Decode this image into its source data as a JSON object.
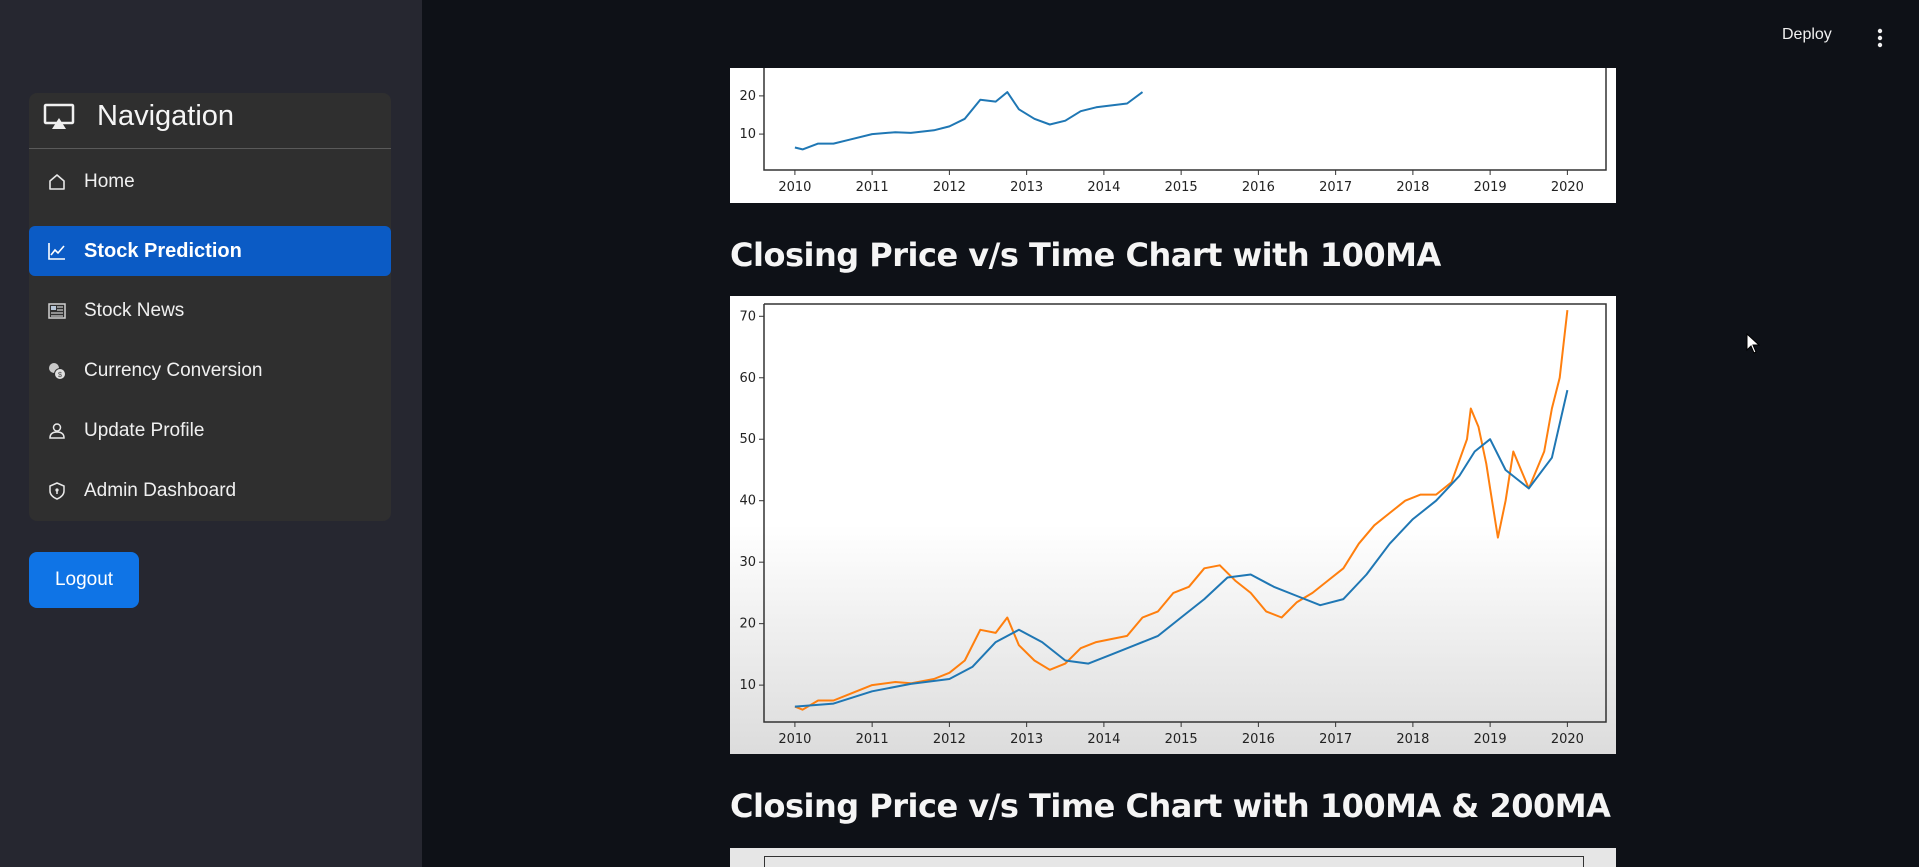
{
  "sidebar": {
    "title": "Navigation",
    "items": [
      {
        "label": "Home",
        "icon": "home-icon",
        "active": false
      },
      {
        "label": "Stock Prediction",
        "icon": "chart-line-icon",
        "active": true
      },
      {
        "label": "Stock News",
        "icon": "newspaper-icon",
        "active": false
      },
      {
        "label": "Currency Conversion",
        "icon": "coins-icon",
        "active": false
      },
      {
        "label": "Update Profile",
        "icon": "user-icon",
        "active": false
      },
      {
        "label": "Admin Dashboard",
        "icon": "shield-icon",
        "active": false
      }
    ],
    "logout_label": "Logout",
    "active_color": "#0b5bc5"
  },
  "header": {
    "deploy_label": "Deploy",
    "menu_icon": "vertical-dots-icon"
  },
  "main": {
    "chart2_title": "Closing Price v/s Time Chart with 100MA",
    "chart3_title": "Closing Price v/s Time Chart with 100MA & 200MA"
  },
  "chart_data": [
    {
      "type": "line",
      "title": "",
      "xlabel": "",
      "ylabel": "",
      "xlim": [
        2009.6,
        2020.5
      ],
      "x_ticks": [
        2010,
        2011,
        2012,
        2013,
        2014,
        2015,
        2016,
        2017,
        2018,
        2019,
        2020
      ],
      "y_ticks_visible": [
        10,
        20
      ],
      "grid": false,
      "series": [
        {
          "color": "#1f77b4",
          "x": [
            2010.0,
            2010.1,
            2010.3,
            2010.5,
            2010.7,
            2011.0,
            2011.3,
            2011.5,
            2011.8,
            2012.0,
            2012.2,
            2012.4,
            2012.6,
            2012.75,
            2012.9,
            2013.1,
            2013.3,
            2013.5,
            2013.7,
            2013.9,
            2014.1,
            2014.3,
            2014.5
          ],
          "y": [
            6.5,
            6.0,
            7.5,
            7.5,
            8.5,
            10.0,
            10.5,
            10.3,
            11.0,
            12.0,
            14.0,
            19.0,
            18.5,
            21.0,
            16.5,
            14.0,
            12.5,
            13.5,
            16.0,
            17.0,
            17.5,
            18.0,
            21.0
          ]
        }
      ]
    },
    {
      "type": "line",
      "title": "Closing Price v/s Time Chart with 100MA",
      "xlabel": "",
      "ylabel": "",
      "xlim": [
        2009.6,
        2020.5
      ],
      "ylim": [
        4,
        72
      ],
      "x_ticks": [
        2010,
        2011,
        2012,
        2013,
        2014,
        2015,
        2016,
        2017,
        2018,
        2019,
        2020
      ],
      "y_ticks": [
        10,
        20,
        30,
        40,
        50,
        60,
        70
      ],
      "grid": false,
      "series": [
        {
          "color": "#ff7f0e",
          "x": [
            2010.0,
            2010.1,
            2010.3,
            2010.5,
            2010.7,
            2011.0,
            2011.3,
            2011.5,
            2011.8,
            2012.0,
            2012.2,
            2012.4,
            2012.6,
            2012.75,
            2012.9,
            2013.1,
            2013.3,
            2013.5,
            2013.7,
            2013.9,
            2014.1,
            2014.3,
            2014.5,
            2014.7,
            2014.9,
            2015.1,
            2015.3,
            2015.5,
            2015.7,
            2015.9,
            2016.1,
            2016.3,
            2016.5,
            2016.7,
            2016.9,
            2017.1,
            2017.3,
            2017.5,
            2017.7,
            2017.9,
            2018.1,
            2018.3,
            2018.5,
            2018.7,
            2018.75,
            2018.85,
            2018.95,
            2019.0,
            2019.1,
            2019.2,
            2019.3,
            2019.5,
            2019.7,
            2019.8,
            2019.9,
            2020.0
          ],
          "y": [
            6.5,
            6.0,
            7.5,
            7.5,
            8.5,
            10.0,
            10.5,
            10.3,
            11.0,
            12.0,
            14.0,
            19.0,
            18.5,
            21.0,
            16.5,
            14.0,
            12.5,
            13.5,
            16.0,
            17.0,
            17.5,
            18.0,
            21.0,
            22.0,
            25.0,
            26.0,
            29.0,
            29.5,
            27.0,
            25.0,
            22.0,
            21.0,
            23.5,
            25.0,
            27.0,
            29.0,
            33.0,
            36.0,
            38.0,
            40.0,
            41.0,
            41.0,
            43.0,
            50.0,
            55.0,
            52.0,
            46.0,
            42.0,
            34.0,
            40.0,
            48.0,
            42.0,
            48.0,
            55.0,
            60.0,
            71.0
          ]
        },
        {
          "color": "#1f77b4",
          "x": [
            2010.0,
            2010.5,
            2011.0,
            2011.5,
            2012.0,
            2012.3,
            2012.6,
            2012.9,
            2013.2,
            2013.5,
            2013.8,
            2014.1,
            2014.4,
            2014.7,
            2015.0,
            2015.3,
            2015.6,
            2015.9,
            2016.2,
            2016.5,
            2016.8,
            2017.1,
            2017.4,
            2017.7,
            2018.0,
            2018.3,
            2018.6,
            2018.8,
            2019.0,
            2019.2,
            2019.5,
            2019.8,
            2020.0
          ],
          "y": [
            6.5,
            7.0,
            9.0,
            10.2,
            11.0,
            13.0,
            17.0,
            19.0,
            17.0,
            14.0,
            13.5,
            15.0,
            16.5,
            18.0,
            21.0,
            24.0,
            27.5,
            28.0,
            26.0,
            24.5,
            23.0,
            24.0,
            28.0,
            33.0,
            37.0,
            40.0,
            44.0,
            48.0,
            50.0,
            45.0,
            42.0,
            47.0,
            58.0
          ]
        }
      ]
    }
  ]
}
